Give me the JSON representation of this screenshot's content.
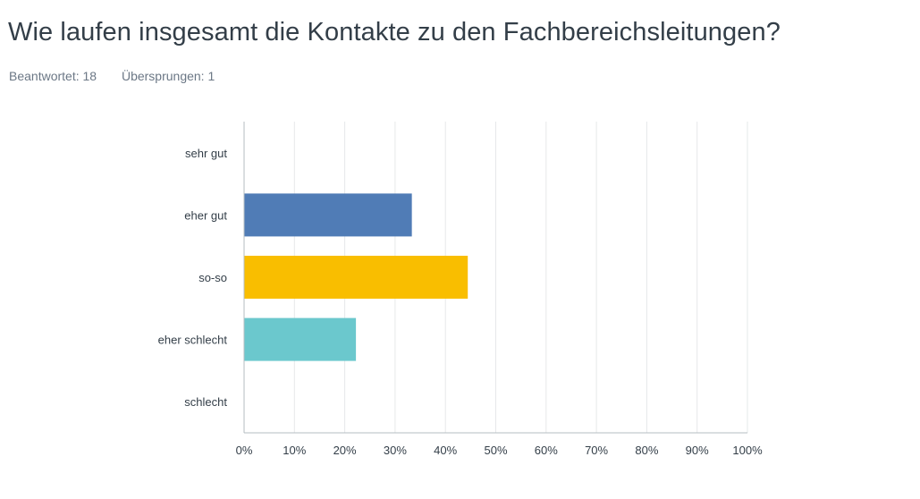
{
  "question": {
    "title": "Wie laufen insgesamt die Kontakte zu den Fachbereichsleitungen?",
    "answered": "Beantwortet: 18",
    "skipped": "Übersprungen: 1"
  },
  "chart_data": {
    "type": "bar",
    "orientation": "horizontal",
    "categories": [
      "sehr gut",
      "eher gut",
      "so-so",
      "eher schlecht",
      "schlecht"
    ],
    "values": [
      0,
      33.33,
      44.44,
      22.22,
      0
    ],
    "colors": [
      "#507cb6",
      "#507cb6",
      "#f9be00",
      "#6bc8cd",
      "#507cb6"
    ],
    "xlim": [
      0,
      100
    ],
    "ticks": [
      "0%",
      "10%",
      "20%",
      "30%",
      "40%",
      "50%",
      "60%",
      "70%",
      "80%",
      "90%",
      "100%"
    ],
    "grid": true,
    "title": "",
    "xlabel": "",
    "ylabel": ""
  }
}
